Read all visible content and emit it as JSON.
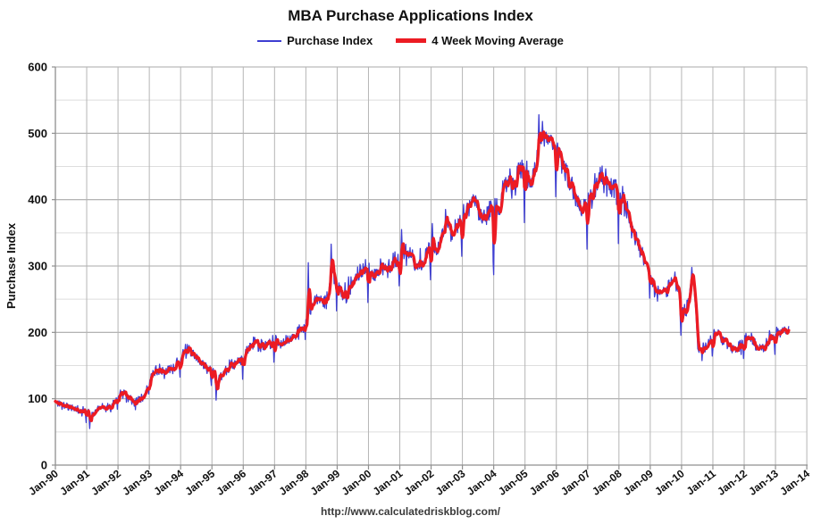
{
  "title": "MBA Purchase Applications Index",
  "legend": {
    "items": [
      {
        "label": "Purchase Index",
        "color": "#3e3ed2",
        "thickness": 2
      },
      {
        "label": "4 Week Moving Average",
        "color": "#ec1b23",
        "thickness": 5
      }
    ]
  },
  "y_axis": {
    "title": "Purchase Index",
    "tick_labels": [
      "0",
      "100",
      "200",
      "300",
      "400",
      "500",
      "600"
    ]
  },
  "x_axis": {
    "tick_labels": [
      "Jan-90",
      "Jan-91",
      "Jan-92",
      "Jan-93",
      "Jan-94",
      "Jan-95",
      "Jan-96",
      "Jan-97",
      "Jan-98",
      "Jan-99",
      "Jan-00",
      "Jan-01",
      "Jan-02",
      "Jan-03",
      "Jan-04",
      "Jan-05",
      "Jan-06",
      "Jan-07",
      "Jan-08",
      "Jan-09",
      "Jan-10",
      "Jan-11",
      "Jan-12",
      "Jan-13",
      "Jan-14"
    ]
  },
  "footer": {
    "url": "http://www.calculatedriskblog.com/"
  },
  "colors": {
    "blue_series": "#3e3ed2",
    "red_series": "#ec1b23",
    "grid_major": "#a8a8a8",
    "grid_minor": "#dedede",
    "grid_vertical": "#b5b5b5",
    "axis_line": "#8f8f8f",
    "text": "#111111"
  },
  "chart_data": {
    "type": "line",
    "title": "MBA Purchase Applications Index",
    "xlabel": "",
    "ylabel": "Purchase Index",
    "ylim": [
      0,
      600
    ],
    "y_major_step": 100,
    "y_minor_step": 50,
    "xlim_years": [
      1990.0,
      2014.0
    ],
    "data_end_year": 2013.42,
    "grid": true,
    "legend_position": "top",
    "series": [
      {
        "name": "Purchase Index",
        "color": "#3e3ed2",
        "width": 1.3,
        "role": "weekly_index"
      },
      {
        "name": "4 Week Moving Average",
        "color": "#ec1b23",
        "width": 3.3,
        "role": "4wk_moving_average"
      }
    ],
    "ma_anchor_points": [
      [
        1990.0,
        95
      ],
      [
        1990.15,
        92
      ],
      [
        1990.3,
        90
      ],
      [
        1990.5,
        86
      ],
      [
        1990.7,
        83
      ],
      [
        1990.9,
        82
      ],
      [
        1991.05,
        79
      ],
      [
        1991.17,
        76
      ],
      [
        1991.3,
        82
      ],
      [
        1991.45,
        89
      ],
      [
        1991.6,
        87
      ],
      [
        1991.75,
        90
      ],
      [
        1991.9,
        96
      ],
      [
        1992.05,
        108
      ],
      [
        1992.15,
        115
      ],
      [
        1992.3,
        102
      ],
      [
        1992.5,
        96
      ],
      [
        1992.7,
        100
      ],
      [
        1992.88,
        110
      ],
      [
        1993.05,
        136
      ],
      [
        1993.2,
        143
      ],
      [
        1993.35,
        140
      ],
      [
        1993.55,
        141
      ],
      [
        1993.75,
        147
      ],
      [
        1993.92,
        153
      ],
      [
        1994.05,
        165
      ],
      [
        1994.2,
        171
      ],
      [
        1994.38,
        166
      ],
      [
        1994.55,
        158
      ],
      [
        1994.75,
        151
      ],
      [
        1994.92,
        145
      ],
      [
        1995.05,
        139
      ],
      [
        1995.18,
        127
      ],
      [
        1995.35,
        138
      ],
      [
        1995.55,
        147
      ],
      [
        1995.75,
        153
      ],
      [
        1995.92,
        159
      ],
      [
        1996.08,
        170
      ],
      [
        1996.2,
        178
      ],
      [
        1996.35,
        184
      ],
      [
        1996.5,
        182
      ],
      [
        1996.65,
        178
      ],
      [
        1996.82,
        182
      ],
      [
        1996.95,
        184
      ],
      [
        1997.1,
        186
      ],
      [
        1997.28,
        182
      ],
      [
        1997.45,
        190
      ],
      [
        1997.65,
        197
      ],
      [
        1997.85,
        204
      ],
      [
        1998.0,
        220
      ],
      [
        1998.15,
        240
      ],
      [
        1998.3,
        248
      ],
      [
        1998.45,
        253
      ],
      [
        1998.6,
        246
      ],
      [
        1998.72,
        252
      ],
      [
        1998.82,
        293
      ],
      [
        1998.95,
        280
      ],
      [
        1999.1,
        258
      ],
      [
        1999.2,
        250
      ],
      [
        1999.35,
        268
      ],
      [
        1999.5,
        276
      ],
      [
        1999.65,
        285
      ],
      [
        1999.8,
        295
      ],
      [
        1999.95,
        292
      ],
      [
        2000.1,
        281
      ],
      [
        2000.25,
        292
      ],
      [
        2000.4,
        298
      ],
      [
        2000.55,
        293
      ],
      [
        2000.7,
        302
      ],
      [
        2000.85,
        308
      ],
      [
        2001.0,
        313
      ],
      [
        2001.12,
        320
      ],
      [
        2001.3,
        313
      ],
      [
        2001.5,
        306
      ],
      [
        2001.65,
        299
      ],
      [
        2001.75,
        303
      ],
      [
        2001.9,
        326
      ],
      [
        2002.05,
        330
      ],
      [
        2002.2,
        320
      ],
      [
        2002.35,
        345
      ],
      [
        2002.48,
        372
      ],
      [
        2002.6,
        355
      ],
      [
        2002.72,
        348
      ],
      [
        2002.85,
        360
      ],
      [
        2003.0,
        373
      ],
      [
        2003.15,
        390
      ],
      [
        2003.3,
        398
      ],
      [
        2003.42,
        405
      ],
      [
        2003.55,
        378
      ],
      [
        2003.68,
        368
      ],
      [
        2003.8,
        380
      ],
      [
        2003.92,
        395
      ],
      [
        2004.05,
        390
      ],
      [
        2004.15,
        380
      ],
      [
        2004.3,
        420
      ],
      [
        2004.45,
        428
      ],
      [
        2004.6,
        420
      ],
      [
        2004.75,
        432
      ],
      [
        2004.9,
        443
      ],
      [
        2005.0,
        449
      ],
      [
        2005.13,
        424
      ],
      [
        2005.25,
        432
      ],
      [
        2005.4,
        470
      ],
      [
        2005.55,
        488
      ],
      [
        2005.68,
        493
      ],
      [
        2005.8,
        490
      ],
      [
        2005.92,
        487
      ],
      [
        2006.02,
        483
      ],
      [
        2006.12,
        468
      ],
      [
        2006.25,
        445
      ],
      [
        2006.4,
        428
      ],
      [
        2006.55,
        408
      ],
      [
        2006.7,
        395
      ],
      [
        2006.82,
        382
      ],
      [
        2006.95,
        390
      ],
      [
        2007.1,
        403
      ],
      [
        2007.25,
        425
      ],
      [
        2007.4,
        437
      ],
      [
        2007.55,
        430
      ],
      [
        2007.7,
        424
      ],
      [
        2007.85,
        415
      ],
      [
        2007.95,
        408
      ],
      [
        2008.05,
        398
      ],
      [
        2008.13,
        385
      ],
      [
        2008.2,
        393
      ],
      [
        2008.3,
        378
      ],
      [
        2008.45,
        350
      ],
      [
        2008.6,
        332
      ],
      [
        2008.75,
        315
      ],
      [
        2008.9,
        298
      ],
      [
        2009.0,
        288
      ],
      [
        2009.12,
        268
      ],
      [
        2009.25,
        255
      ],
      [
        2009.4,
        263
      ],
      [
        2009.55,
        270
      ],
      [
        2009.7,
        280
      ],
      [
        2009.8,
        288
      ],
      [
        2009.9,
        260
      ],
      [
        2009.97,
        238
      ],
      [
        2010.08,
        228
      ],
      [
        2010.2,
        238
      ],
      [
        2010.3,
        272
      ],
      [
        2010.36,
        278
      ],
      [
        2010.44,
        240
      ],
      [
        2010.52,
        180
      ],
      [
        2010.62,
        168
      ],
      [
        2010.75,
        175
      ],
      [
        2010.88,
        188
      ],
      [
        2011.0,
        195
      ],
      [
        2011.1,
        204
      ],
      [
        2011.25,
        190
      ],
      [
        2011.4,
        186
      ],
      [
        2011.55,
        182
      ],
      [
        2011.67,
        171
      ],
      [
        2011.8,
        176
      ],
      [
        2011.92,
        180
      ],
      [
        2012.05,
        188
      ],
      [
        2012.18,
        193
      ],
      [
        2012.3,
        186
      ],
      [
        2012.45,
        181
      ],
      [
        2012.6,
        176
      ],
      [
        2012.72,
        180
      ],
      [
        2012.85,
        188
      ],
      [
        2012.95,
        192
      ],
      [
        2013.08,
        198
      ],
      [
        2013.2,
        205
      ],
      [
        2013.32,
        203
      ],
      [
        2013.42,
        206
      ]
    ],
    "weekly_spike_events": [
      [
        1991.1,
        55
      ],
      [
        1995.14,
        98
      ],
      [
        1998.07,
        305
      ],
      [
        1998.8,
        333
      ],
      [
        2001.05,
        355
      ],
      [
        2002.03,
        364
      ],
      [
        2004.0,
        302
      ],
      [
        2005.45,
        528
      ],
      [
        2005.55,
        518
      ],
      [
        2008.12,
        420
      ],
      [
        2010.33,
        298
      ]
    ],
    "noise": {
      "seed": 11,
      "base_amp": 4,
      "rel_amp": 0.035,
      "spike_prob": 0.06,
      "spike_mult": 1.5
    },
    "holiday_dip": {
      "factor": 0.85,
      "neighbor_factor": 0.95
    }
  }
}
